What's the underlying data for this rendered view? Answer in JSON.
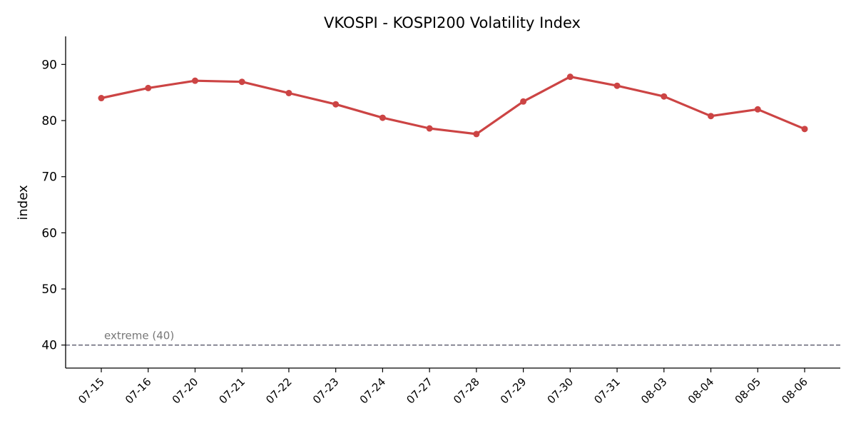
{
  "chart_data": {
    "type": "line",
    "title": "VKOSPI - KOSPI200 Volatility Index",
    "xlabel": "",
    "ylabel": "index",
    "categories": [
      "07-15",
      "07-16",
      "07-20",
      "07-21",
      "07-22",
      "07-23",
      "07-24",
      "07-27",
      "07-28",
      "07-29",
      "07-30",
      "07-31",
      "08-03",
      "08-04",
      "08-05",
      "08-06"
    ],
    "series": [
      {
        "values": [
          84.0,
          85.8,
          87.1,
          86.9,
          84.9,
          82.9,
          80.5,
          78.6,
          77.6,
          83.4,
          87.8,
          86.2,
          84.3,
          80.8,
          82.0,
          78.5
        ],
        "color": "#cc4444"
      }
    ],
    "ylim": [
      35.9,
      95
    ],
    "yticks": [
      40,
      50,
      60,
      70,
      80,
      90
    ],
    "grid": false,
    "legend": "none",
    "reference_line": {
      "value": 40,
      "label": "extreme (40)",
      "color": "#666677",
      "style": "dashed"
    }
  }
}
